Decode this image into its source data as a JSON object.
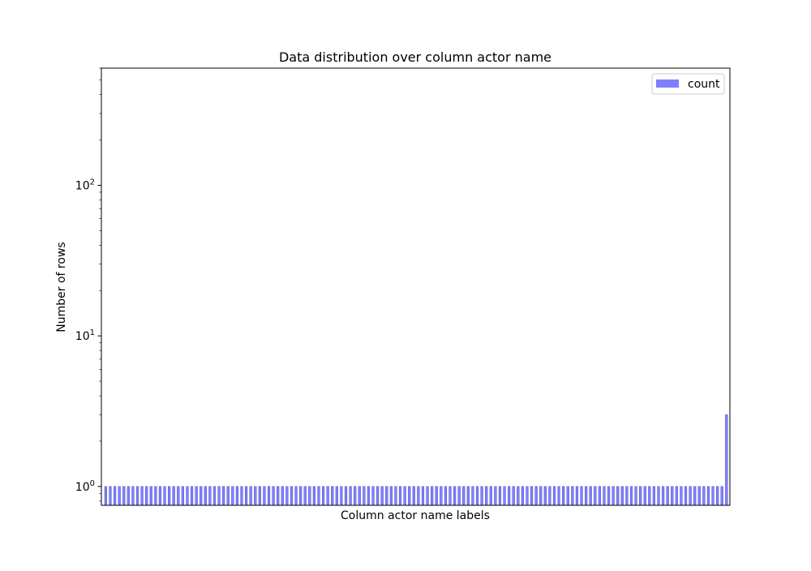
{
  "chart_data": {
    "type": "bar",
    "title": "Data distribution over column actor name",
    "xlabel": "Column actor name labels",
    "ylabel": "Number of rows",
    "yscale": "log",
    "ylim": [
      0.75,
      600
    ],
    "y_ticks": [
      {
        "value": 1,
        "base": "10",
        "exp": "0"
      },
      {
        "value": 10,
        "base": "10",
        "exp": "1"
      },
      {
        "value": 100,
        "base": "10",
        "exp": "2"
      }
    ],
    "x_tick_labels_visible": false,
    "bar_count": 138,
    "bar_color": "#8080ff",
    "edge_color": "#3a3ab8",
    "legend_position": "top-right",
    "series": [
      {
        "name": "count",
        "values": [
          1,
          1,
          1,
          1,
          1,
          1,
          1,
          1,
          1,
          1,
          1,
          1,
          1,
          1,
          1,
          1,
          1,
          1,
          1,
          1,
          1,
          1,
          1,
          1,
          1,
          1,
          1,
          1,
          1,
          1,
          1,
          1,
          1,
          1,
          1,
          1,
          1,
          1,
          1,
          1,
          1,
          1,
          1,
          1,
          1,
          1,
          1,
          1,
          1,
          1,
          1,
          1,
          1,
          1,
          1,
          1,
          1,
          1,
          1,
          1,
          1,
          1,
          1,
          1,
          1,
          1,
          1,
          1,
          1,
          1,
          1,
          1,
          1,
          1,
          1,
          1,
          1,
          1,
          1,
          1,
          1,
          1,
          1,
          1,
          1,
          1,
          1,
          1,
          1,
          1,
          1,
          1,
          1,
          1,
          1,
          1,
          1,
          1,
          1,
          1,
          1,
          1,
          1,
          1,
          1,
          1,
          1,
          1,
          1,
          1,
          1,
          1,
          1,
          1,
          1,
          1,
          1,
          1,
          1,
          1,
          1,
          1,
          1,
          1,
          1,
          1,
          1,
          1,
          1,
          1,
          1,
          1,
          1,
          1,
          1,
          1,
          1,
          3
        ]
      }
    ]
  }
}
